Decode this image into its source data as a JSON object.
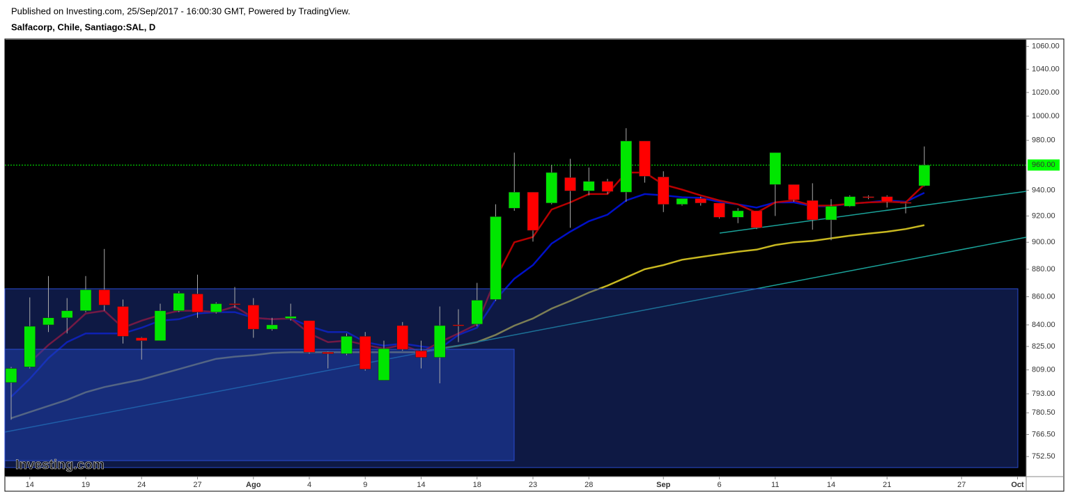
{
  "chart_data": {
    "type": "candlestick",
    "source": "Published on Investing.com, 25/Sep/2017 - 16:00:30 GMT, Powered by TradingView.",
    "title": "Salfacorp, Chile, Santiago:SAL, D",
    "watermark": "Investing.com",
    "log_scale": true,
    "ylim": [
      740,
      1066
    ],
    "yticks": [
      {
        "value": 1060,
        "label": "1060.00"
      },
      {
        "value": 1040,
        "label": "1040.00"
      },
      {
        "value": 1020,
        "label": "1020.00"
      },
      {
        "value": 1000,
        "label": "1000.00"
      },
      {
        "value": 980,
        "label": "980.00"
      },
      {
        "value": 940,
        "label": "940.00"
      },
      {
        "value": 920,
        "label": "920.00"
      },
      {
        "value": 900,
        "label": "900.00"
      },
      {
        "value": 880,
        "label": "880.00"
      },
      {
        "value": 860,
        "label": "860.00"
      },
      {
        "value": 840,
        "label": "840.00"
      },
      {
        "value": 825,
        "label": "825.00"
      },
      {
        "value": 809,
        "label": "809.00"
      },
      {
        "value": 793,
        "label": "793.00"
      },
      {
        "value": 780.5,
        "label": "780.50"
      },
      {
        "value": 766.5,
        "label": "766.50"
      },
      {
        "value": 752.5,
        "label": "752.50"
      }
    ],
    "last_price": {
      "value": 960,
      "label": "960.00",
      "color": "#00ff00"
    },
    "categories": [
      null,
      "14",
      null,
      null,
      "19",
      null,
      null,
      "24",
      null,
      null,
      "27",
      null,
      null,
      "Ago",
      null,
      null,
      "4",
      null,
      null,
      "9",
      null,
      null,
      "14",
      null,
      null,
      "18",
      null,
      null,
      "23",
      null,
      null,
      "28",
      null,
      null,
      null,
      "Sep",
      null,
      null,
      "6",
      null,
      null,
      "11",
      null,
      null,
      "14",
      null,
      null,
      "21",
      null,
      null,
      null,
      "27",
      null,
      null,
      "Oct"
    ],
    "up_color": "#00e600",
    "down_color": "#ff0000",
    "open": [
      800.5,
      811,
      840,
      845,
      850,
      865,
      853,
      831,
      829,
      850,
      862,
      849,
      855,
      854,
      837,
      844.5,
      843,
      821,
      820,
      832,
      802,
      839.5,
      822,
      817.5,
      840,
      840.5,
      858,
      926,
      938.5,
      930,
      950,
      939.5,
      947,
      938.5,
      979.5,
      950.5,
      929,
      933.5,
      930,
      919,
      924,
      944.5,
      944.5,
      932,
      917,
      927.5,
      935,
      935,
      930.5,
      943.5,
      null,
      null,
      null,
      null,
      null
    ],
    "high": [
      811,
      859.5,
      875,
      859,
      875,
      895,
      858,
      831.5,
      855,
      864,
      876,
      856,
      867,
      859,
      845,
      855,
      843,
      821.5,
      834,
      835,
      829,
      842,
      829,
      853,
      851,
      870,
      929,
      970,
      938.5,
      960,
      965,
      958,
      949,
      990,
      979.5,
      955,
      933.5,
      935,
      930,
      926,
      924,
      970,
      944.5,
      945.5,
      933,
      936,
      936,
      936,
      931,
      975,
      null,
      null,
      null,
      null,
      null
    ],
    "low": [
      776,
      810,
      835,
      834,
      849,
      850,
      827,
      816,
      829,
      849,
      845,
      848,
      852,
      831,
      836,
      843,
      820,
      810,
      819,
      808.5,
      802,
      822,
      810,
      800,
      828,
      839,
      857,
      924,
      900.5,
      929,
      911,
      936,
      937,
      931,
      946,
      923,
      928,
      928,
      918,
      914.5,
      910,
      920,
      931,
      909.5,
      901.5,
      927,
      933,
      926.5,
      922,
      943,
      null,
      null,
      null,
      null,
      null
    ],
    "close": [
      810,
      839,
      845,
      850,
      865,
      854,
      832,
      829,
      850,
      862.5,
      849,
      855,
      854.5,
      837,
      840,
      846,
      821,
      820,
      832,
      809.5,
      823.5,
      823,
      817.5,
      839.5,
      839.5,
      857.5,
      919.5,
      938.5,
      909,
      954,
      939.5,
      947,
      939,
      979.5,
      951,
      929,
      933.5,
      930,
      919,
      924,
      911,
      970,
      932.5,
      917,
      927.5,
      935,
      934.5,
      931,
      930,
      960,
      null,
      null,
      null,
      null,
      null
    ],
    "overlays": [
      {
        "color": "#c8b820",
        "values": [
          777,
          781,
          785,
          789,
          794,
          797.5,
          800,
          802.5,
          806,
          809.5,
          813,
          816.5,
          818,
          819,
          820.5,
          821,
          821,
          821,
          821,
          821,
          821,
          821,
          821,
          823.5,
          825.5,
          828,
          833,
          839.5,
          844.5,
          851.5,
          857,
          863,
          868,
          874,
          880,
          883,
          887,
          889,
          891,
          893,
          894.5,
          898,
          900,
          901,
          903,
          905,
          906.5,
          908,
          910,
          913,
          null,
          null,
          null,
          null,
          null
        ]
      },
      {
        "color": "#0010c8",
        "values": [
          791,
          803,
          817,
          828,
          834,
          834,
          834,
          838,
          843,
          844,
          848,
          849,
          849,
          845,
          844,
          844.5,
          839,
          835,
          835,
          828,
          825.5,
          827,
          825,
          823.5,
          833,
          838,
          858,
          873,
          883,
          899,
          908,
          916,
          921,
          932,
          937,
          936,
          934.5,
          934,
          931,
          929,
          926.5,
          930.5,
          930.5,
          927.5,
          927.5,
          929.5,
          930.5,
          932,
          931,
          938,
          null,
          null,
          null,
          null,
          null
        ]
      },
      {
        "color": "#b80000",
        "values": [
          null,
          814,
          826,
          836,
          848,
          850,
          838,
          843,
          847,
          850,
          850,
          849,
          853,
          845,
          844,
          844.5,
          834,
          828,
          829,
          826,
          823.5,
          826,
          821,
          828,
          834,
          840.5,
          873,
          900,
          904,
          925,
          930.5,
          937,
          937,
          954,
          954,
          944.5,
          940.5,
          936,
          932,
          929,
          922.5,
          930.5,
          932,
          928,
          928,
          929.5,
          930.5,
          931,
          930.5,
          944.5,
          null,
          null,
          null,
          null,
          null
        ]
      }
    ]
  }
}
